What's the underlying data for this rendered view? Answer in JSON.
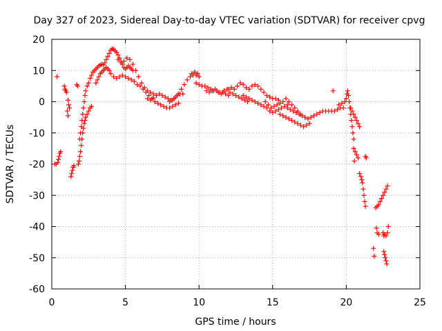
{
  "chart_data": {
    "type": "scatter",
    "title": "Day 327 of 2023, Sidereal Day-to-day VTEC variation (SDTVAR) for receiver cpvg",
    "xlabel": "GPS time / hours",
    "ylabel": "SDTVAR / TECUs",
    "xlim": [
      0,
      25
    ],
    "ylim": [
      -60,
      20
    ],
    "xticks": [
      "0",
      "5",
      "10",
      "15",
      "20",
      "25"
    ],
    "yticks": [
      "20",
      "10",
      "0",
      "-10",
      "-20",
      "-30",
      "-40",
      "-50",
      "-60"
    ],
    "grid": true,
    "marker_color": "#ff0000",
    "series": [
      {
        "name": "cpvg",
        "marker": "+",
        "points": [
          [
            0.2,
            -20
          ],
          [
            0.3,
            -20
          ],
          [
            0.4,
            -19.5
          ],
          [
            0.45,
            -18.5
          ],
          [
            0.5,
            -17.5
          ],
          [
            0.55,
            -16.5
          ],
          [
            0.6,
            -16
          ],
          [
            0.35,
            8
          ],
          [
            0.85,
            5
          ],
          [
            0.9,
            4
          ],
          [
            0.95,
            3.5
          ],
          [
            1.0,
            3
          ],
          [
            1.1,
            0.5
          ],
          [
            1.15,
            -1
          ],
          [
            1.2,
            -2
          ],
          [
            1.05,
            -3
          ],
          [
            1.1,
            -4.5
          ],
          [
            1.3,
            -24
          ],
          [
            1.35,
            -23
          ],
          [
            1.4,
            -22
          ],
          [
            1.45,
            -21
          ],
          [
            1.5,
            -20.5
          ],
          [
            1.7,
            5.5
          ],
          [
            1.75,
            5
          ],
          [
            1.8,
            -20
          ],
          [
            1.85,
            -19
          ],
          [
            1.9,
            -17.5
          ],
          [
            1.95,
            -16
          ],
          [
            2.0,
            -14
          ],
          [
            2.05,
            -12
          ],
          [
            2.1,
            -10
          ],
          [
            2.15,
            -8.5
          ],
          [
            2.2,
            -7
          ],
          [
            2.25,
            -6
          ],
          [
            2.3,
            -5
          ],
          [
            2.4,
            -4
          ],
          [
            2.5,
            -3
          ],
          [
            2.6,
            -2
          ],
          [
            2.7,
            -1.5
          ],
          [
            1.9,
            -12
          ],
          [
            1.95,
            -10
          ],
          [
            2.0,
            -8
          ],
          [
            2.05,
            -6
          ],
          [
            2.1,
            -4
          ],
          [
            2.15,
            -2
          ],
          [
            2.2,
            0
          ],
          [
            2.25,
            2
          ],
          [
            2.3,
            3.5
          ],
          [
            2.4,
            5
          ],
          [
            2.5,
            6
          ],
          [
            2.6,
            7.5
          ],
          [
            2.7,
            8.5
          ],
          [
            2.8,
            9.5
          ],
          [
            2.9,
            10
          ],
          [
            3.0,
            10.5
          ],
          [
            3.1,
            11
          ],
          [
            3.2,
            11.5
          ],
          [
            3.3,
            11.8
          ],
          [
            3.4,
            12
          ],
          [
            3.5,
            11.8
          ],
          [
            3.6,
            12.5
          ],
          [
            3.7,
            13.5
          ],
          [
            3.8,
            14.5
          ],
          [
            3.9,
            15.5
          ],
          [
            4.0,
            16.5
          ],
          [
            4.1,
            17
          ],
          [
            4.2,
            16.8
          ],
          [
            4.3,
            16.3
          ],
          [
            4.4,
            15.8
          ],
          [
            4.5,
            15
          ],
          [
            4.6,
            14
          ],
          [
            4.7,
            13
          ],
          [
            4.8,
            12
          ],
          [
            4.9,
            11
          ],
          [
            5.0,
            10.5
          ],
          [
            5.1,
            11
          ],
          [
            5.2,
            11.5
          ],
          [
            5.3,
            11
          ],
          [
            5.4,
            10.5
          ],
          [
            5.5,
            10
          ],
          [
            3.0,
            6
          ],
          [
            3.1,
            7
          ],
          [
            3.2,
            8
          ],
          [
            3.3,
            9
          ],
          [
            3.4,
            9.5
          ],
          [
            3.5,
            10
          ],
          [
            3.6,
            10.5
          ],
          [
            3.7,
            11
          ],
          [
            3.8,
            10.5
          ],
          [
            3.9,
            10
          ],
          [
            4.0,
            9
          ],
          [
            4.2,
            8
          ],
          [
            4.4,
            7.5
          ],
          [
            4.6,
            8
          ],
          [
            4.8,
            8.5
          ],
          [
            5.0,
            8
          ],
          [
            5.2,
            7.5
          ],
          [
            5.4,
            7
          ],
          [
            5.6,
            6.5
          ],
          [
            5.8,
            5.5
          ],
          [
            4.5,
            13.5
          ],
          [
            4.7,
            12.5
          ],
          [
            4.9,
            13
          ],
          [
            5.1,
            14
          ],
          [
            5.3,
            13.5
          ],
          [
            5.5,
            12
          ],
          [
            5.7,
            10
          ],
          [
            5.9,
            8
          ],
          [
            6.1,
            6
          ],
          [
            6.3,
            4.5
          ],
          [
            6.5,
            3.5
          ],
          [
            6.7,
            3
          ],
          [
            6.9,
            2.5
          ],
          [
            6.0,
            5
          ],
          [
            6.2,
            4
          ],
          [
            6.4,
            3
          ],
          [
            6.6,
            2
          ],
          [
            6.8,
            1
          ],
          [
            7.0,
            0
          ],
          [
            7.2,
            -0.5
          ],
          [
            7.4,
            -1
          ],
          [
            7.6,
            -1.5
          ],
          [
            7.8,
            -2
          ],
          [
            8.0,
            -2
          ],
          [
            8.2,
            -1.5
          ],
          [
            8.4,
            -1
          ],
          [
            8.6,
            -0.5
          ],
          [
            6.5,
            1
          ],
          [
            6.7,
            0.5
          ],
          [
            6.9,
            1.2
          ],
          [
            7.1,
            2
          ],
          [
            7.3,
            2.5
          ],
          [
            7.5,
            2
          ],
          [
            7.7,
            1.5
          ],
          [
            7.9,
            1
          ],
          [
            8.1,
            0.5
          ],
          [
            8.3,
            1
          ],
          [
            8.5,
            2
          ],
          [
            8.7,
            2.5
          ],
          [
            8.9,
            2.5
          ],
          [
            8.0,
            0
          ],
          [
            8.2,
            0.5
          ],
          [
            8.4,
            1.5
          ],
          [
            8.6,
            2.5
          ],
          [
            8.8,
            4
          ],
          [
            9.0,
            5.5
          ],
          [
            9.2,
            7
          ],
          [
            9.4,
            8
          ],
          [
            9.6,
            8.5
          ],
          [
            9.8,
            8.5
          ],
          [
            10.0,
            8
          ],
          [
            9.5,
            9
          ],
          [
            9.7,
            9.5
          ],
          [
            9.9,
            9
          ],
          [
            9.8,
            6
          ],
          [
            10.0,
            5.5
          ],
          [
            10.2,
            5
          ],
          [
            10.4,
            5
          ],
          [
            10.6,
            4.5
          ],
          [
            10.8,
            4
          ],
          [
            11.0,
            3.5
          ],
          [
            11.2,
            3.5
          ],
          [
            11.4,
            3
          ],
          [
            11.6,
            3
          ],
          [
            11.8,
            2.5
          ],
          [
            12.0,
            2
          ],
          [
            10.5,
            3.5
          ],
          [
            10.7,
            3
          ],
          [
            10.9,
            3.5
          ],
          [
            11.1,
            4
          ],
          [
            11.3,
            3
          ],
          [
            11.5,
            2.5
          ],
          [
            11.7,
            3.5
          ],
          [
            11.9,
            4
          ],
          [
            12.1,
            3
          ],
          [
            12.3,
            2.5
          ],
          [
            12.5,
            2
          ],
          [
            12.7,
            1.5
          ],
          [
            12.9,
            1
          ],
          [
            13.1,
            0.5
          ],
          [
            13.3,
            0
          ],
          [
            12.0,
            4
          ],
          [
            12.2,
            4.5
          ],
          [
            12.4,
            4
          ],
          [
            12.6,
            5
          ],
          [
            12.8,
            6
          ],
          [
            13.0,
            5.5
          ],
          [
            13.2,
            4.5
          ],
          [
            13.4,
            4
          ],
          [
            13.6,
            5
          ],
          [
            13.8,
            5.5
          ],
          [
            14.0,
            5
          ],
          [
            14.2,
            4
          ],
          [
            14.4,
            3
          ],
          [
            14.6,
            2
          ],
          [
            14.8,
            1.5
          ],
          [
            15.0,
            1
          ],
          [
            15.2,
            1
          ],
          [
            15.4,
            0.5
          ],
          [
            13.0,
            2
          ],
          [
            13.2,
            1.5
          ],
          [
            13.4,
            1
          ],
          [
            13.6,
            0.5
          ],
          [
            13.8,
            0
          ],
          [
            14.0,
            -0.5
          ],
          [
            14.2,
            -1
          ],
          [
            14.4,
            -1.5
          ],
          [
            14.6,
            -2
          ],
          [
            14.8,
            -3
          ],
          [
            15.0,
            -3.5
          ],
          [
            15.2,
            -3
          ],
          [
            15.4,
            -2.5
          ],
          [
            15.6,
            -2
          ],
          [
            15.8,
            -1.5
          ],
          [
            16.0,
            -1
          ],
          [
            14.5,
            0
          ],
          [
            14.7,
            -1
          ],
          [
            14.9,
            -2
          ],
          [
            15.1,
            -1.5
          ],
          [
            15.3,
            -1
          ],
          [
            15.5,
            -0.5
          ],
          [
            15.7,
            0
          ],
          [
            15.9,
            1
          ],
          [
            16.1,
            0
          ],
          [
            16.3,
            -1
          ],
          [
            16.5,
            -2
          ],
          [
            16.7,
            -3
          ],
          [
            16.9,
            -4
          ],
          [
            15.5,
            -4
          ],
          [
            15.7,
            -4.5
          ],
          [
            15.9,
            -5
          ],
          [
            16.1,
            -5.5
          ],
          [
            16.3,
            -6
          ],
          [
            16.5,
            -6.5
          ],
          [
            16.7,
            -7
          ],
          [
            16.9,
            -7.5
          ],
          [
            17.1,
            -8
          ],
          [
            17.3,
            -7.5
          ],
          [
            17.5,
            -7
          ],
          [
            16.0,
            -2
          ],
          [
            16.2,
            -2.5
          ],
          [
            16.4,
            -3
          ],
          [
            16.6,
            -3.5
          ],
          [
            16.8,
            -4
          ],
          [
            17.0,
            -4.5
          ],
          [
            17.2,
            -5
          ],
          [
            17.4,
            -5.5
          ],
          [
            17.6,
            -5
          ],
          [
            17.8,
            -4.5
          ],
          [
            18.0,
            -4
          ],
          [
            18.2,
            -3.5
          ],
          [
            18.4,
            -3
          ],
          [
            18.6,
            -3
          ],
          [
            18.8,
            -3
          ],
          [
            19.0,
            -3
          ],
          [
            19.2,
            -3
          ],
          [
            19.4,
            -2.5
          ],
          [
            19.6,
            -2
          ],
          [
            19.8,
            -2
          ],
          [
            19.1,
            3.5
          ],
          [
            19.5,
            -1
          ],
          [
            19.7,
            -0.5
          ],
          [
            19.9,
            0
          ],
          [
            20.0,
            1
          ],
          [
            20.05,
            2.5
          ],
          [
            20.1,
            3.5
          ],
          [
            20.15,
            2
          ],
          [
            20.2,
            0
          ],
          [
            20.25,
            -2
          ],
          [
            20.3,
            -4
          ],
          [
            20.35,
            -6
          ],
          [
            20.4,
            -8
          ],
          [
            20.45,
            -10
          ],
          [
            20.5,
            -12
          ],
          [
            20.3,
            -2
          ],
          [
            20.4,
            -3
          ],
          [
            20.5,
            -4
          ],
          [
            20.6,
            -5
          ],
          [
            20.7,
            -6
          ],
          [
            20.8,
            -7
          ],
          [
            20.9,
            -8
          ],
          [
            20.5,
            -15
          ],
          [
            20.6,
            -16
          ],
          [
            20.7,
            -17
          ],
          [
            20.8,
            -18
          ],
          [
            20.55,
            -19
          ],
          [
            21.3,
            -17.5
          ],
          [
            21.35,
            -18
          ],
          [
            20.9,
            -23
          ],
          [
            21.0,
            -24
          ],
          [
            21.05,
            -25
          ],
          [
            21.1,
            -26
          ],
          [
            21.15,
            -28
          ],
          [
            21.2,
            -30
          ],
          [
            21.25,
            -32
          ],
          [
            21.3,
            -33.5
          ],
          [
            21.85,
            -47
          ],
          [
            21.9,
            -49.5
          ],
          [
            22.0,
            -34
          ],
          [
            22.1,
            -33.5
          ],
          [
            22.2,
            -33
          ],
          [
            22.3,
            -32
          ],
          [
            22.4,
            -31
          ],
          [
            22.5,
            -30
          ],
          [
            22.6,
            -29
          ],
          [
            22.7,
            -28
          ],
          [
            22.8,
            -27
          ],
          [
            22.05,
            -40.5
          ],
          [
            22.1,
            -42
          ],
          [
            22.2,
            -42.5
          ],
          [
            22.5,
            -42
          ],
          [
            22.55,
            -43
          ],
          [
            22.6,
            -42.5
          ],
          [
            22.7,
            -43
          ],
          [
            22.8,
            -42
          ],
          [
            22.85,
            -40
          ],
          [
            22.55,
            -48
          ],
          [
            22.6,
            -49
          ],
          [
            22.65,
            -50
          ],
          [
            22.7,
            -51
          ],
          [
            22.75,
            -52
          ]
        ]
      }
    ]
  }
}
